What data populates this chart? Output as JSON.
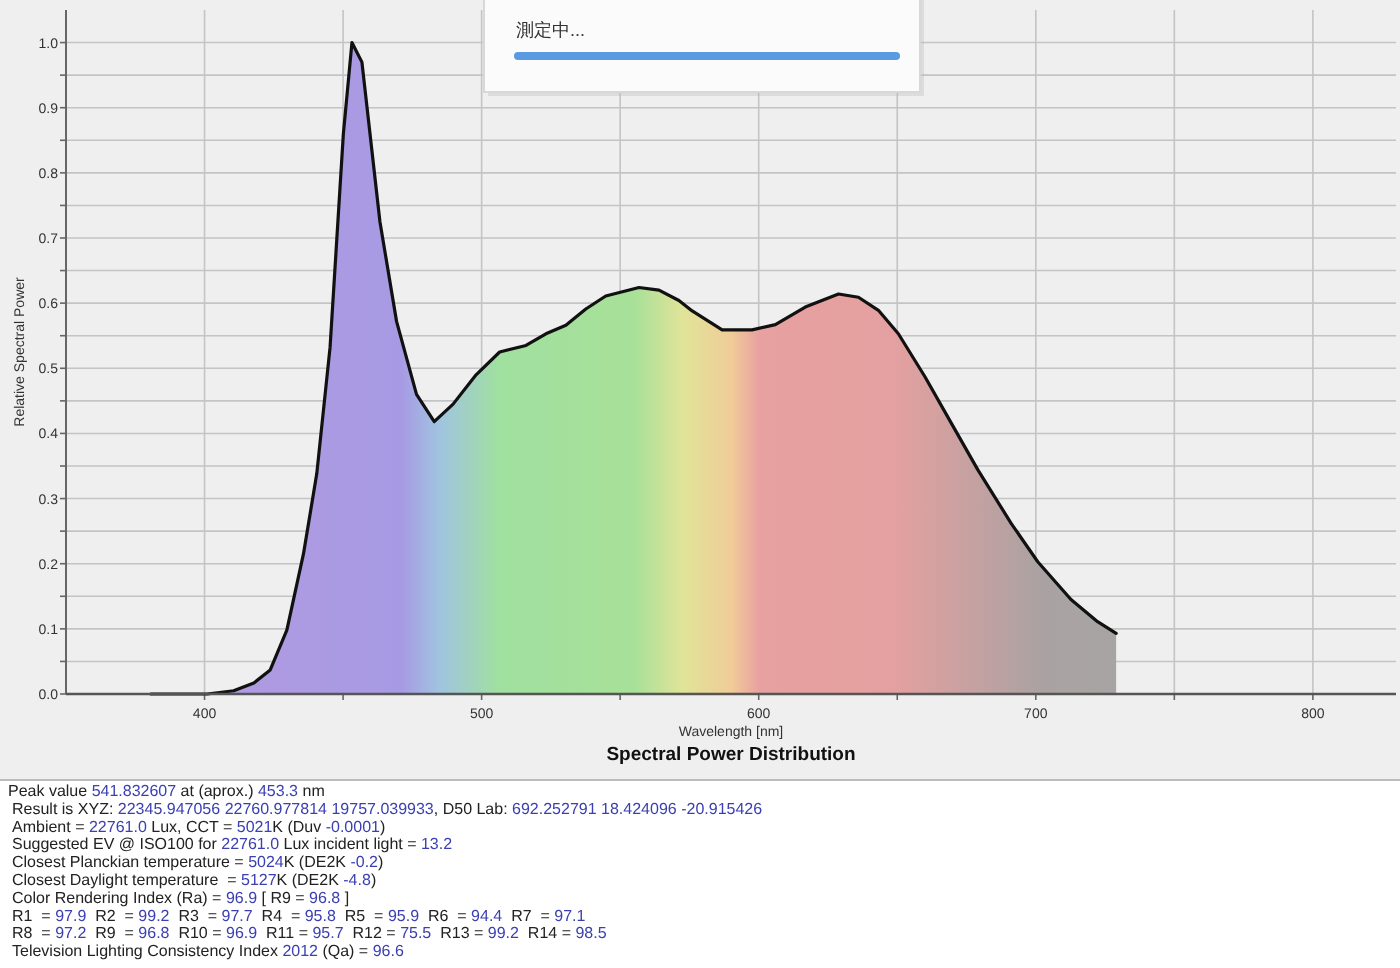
{
  "chart_data": {
    "type": "area",
    "title": "Spectral Power Distribution",
    "xlabel": "Wavelength [nm]",
    "ylabel": "Relative Spectral Power",
    "x": [
      380.6,
      401,
      410.5,
      417.8,
      423.7,
      429.7,
      435.7,
      440.5,
      445.3,
      450.1,
      453.2,
      456.8,
      463.3,
      469.3,
      476.5,
      482.9,
      489.7,
      498,
      506.5,
      516,
      523.2,
      530.4,
      537.6,
      544.8,
      556.8,
      564,
      571.2,
      576,
      586.8,
      597.6,
      606,
      616.8,
      628.8,
      636,
      643.2,
      650.4,
      660,
      669.6,
      679.1,
      691.1,
      700.7,
      712.7,
      722.3,
      729
    ],
    "series": [
      {
        "color": "#111111",
        "values": [
          0,
          0,
          0.005,
          0.017,
          0.037,
          0.098,
          0.215,
          0.338,
          0.532,
          0.86,
          1.0,
          0.97,
          0.725,
          0.572,
          0.46,
          0.418,
          0.445,
          0.49,
          0.525,
          0.535,
          0.553,
          0.566,
          0.591,
          0.611,
          0.624,
          0.62,
          0.604,
          0.588,
          0.559,
          0.559,
          0.567,
          0.594,
          0.614,
          0.609,
          0.589,
          0.553,
          0.487,
          0.415,
          0.344,
          0.262,
          0.203,
          0.145,
          0.111,
          0.093
        ]
      }
    ],
    "xlim": [
      350,
      830
    ],
    "ylim": [
      0,
      1.05
    ],
    "xticks": [
      400,
      {
        "value": 450,
        "label": null
      },
      500,
      {
        "value": 550,
        "label": null
      },
      600,
      {
        "value": 650,
        "label": null
      },
      700,
      {
        "value": 750,
        "label": null
      },
      800
    ],
    "yticks": [
      {
        "value": 0,
        "label": "0.0"
      },
      {
        "value": 0.05,
        "label": null
      },
      0.1,
      {
        "value": 0.15,
        "label": null
      },
      0.2,
      {
        "value": 0.25,
        "label": null
      },
      0.3,
      {
        "value": 0.35,
        "label": null
      },
      0.4,
      {
        "value": 0.45,
        "label": null
      },
      0.5,
      {
        "value": 0.55,
        "label": null
      },
      0.6,
      {
        "value": 0.65,
        "label": null
      },
      0.7,
      {
        "value": 0.75,
        "label": null
      },
      0.8,
      {
        "value": 0.85,
        "label": null
      },
      0.9,
      {
        "value": 0.95,
        "label": null
      },
      {
        "value": 1,
        "label": "1.0"
      }
    ],
    "grid": true,
    "annotations": [
      "測定中...",
      "Peak value 541.832607 at (aprox.) 453.3 nm",
      "Result is XYZ: 22345.947056 22760.977814 19757.039933, D50 Lab: 692.252791 18.424096 -20.915426",
      "Ambient = 22761.0 Lux, CCT = 5021K (Duv -0.0001)",
      "Suggested EV @ ISO100 for 22761.0 Lux incident light = 13.2",
      "Closest Planckian temperature = 5024K (DE2K -0.2)",
      "Closest Daylight temperature  = 5127K (DE2K -4.8)",
      "Color Rendering Index (Ra) = 96.9 [ R9 = 96.8 ]",
      "R1  = 97.9  R2  = 99.2  R3  = 97.7  R4  = 95.8  R5  = 95.9  R6  = 94.4  R7  = 97.1",
      "R8  = 97.2  R9  = 96.8  R10 = 96.9  R11 = 95.7  R12 = 75.5  R13 = 99.2  R14 = 98.5",
      "Television Lighting Consistency Index 2012 (Qa) = 96.6"
    ]
  }
}
